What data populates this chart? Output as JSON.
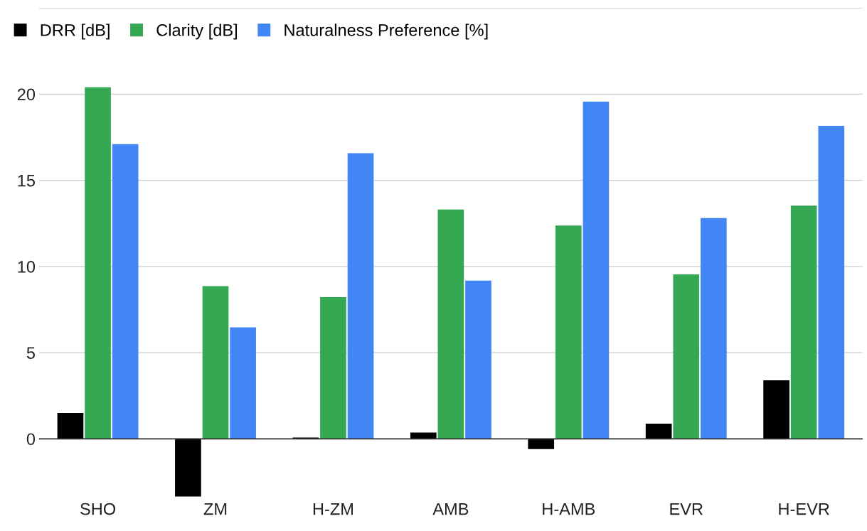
{
  "chart_data": {
    "type": "bar",
    "categories": [
      "SHO",
      "ZM",
      "H-ZM",
      "AMB",
      "H-AMB",
      "EVR",
      "H-EVR"
    ],
    "series": [
      {
        "name": "DRR [dB]",
        "color": "#000000",
        "values": [
          1.5,
          -3.35,
          0.08,
          0.36,
          -0.6,
          0.88,
          3.4
        ]
      },
      {
        "name": "Clarity [dB]",
        "color": "#34a853",
        "values": [
          20.4,
          8.86,
          8.22,
          13.3,
          12.38,
          9.54,
          13.53
        ]
      },
      {
        "name": "Naturalness Preference [%]",
        "color": "#4285f4",
        "values": [
          17.1,
          6.47,
          16.57,
          9.18,
          19.56,
          12.81,
          18.16
        ]
      }
    ],
    "ylim": [
      -3.5,
      25
    ],
    "yticks": [
      0,
      5,
      10,
      15,
      20,
      {
        "value": 25,
        "label": null
      }
    ],
    "grid": "y",
    "legend": "top left"
  }
}
